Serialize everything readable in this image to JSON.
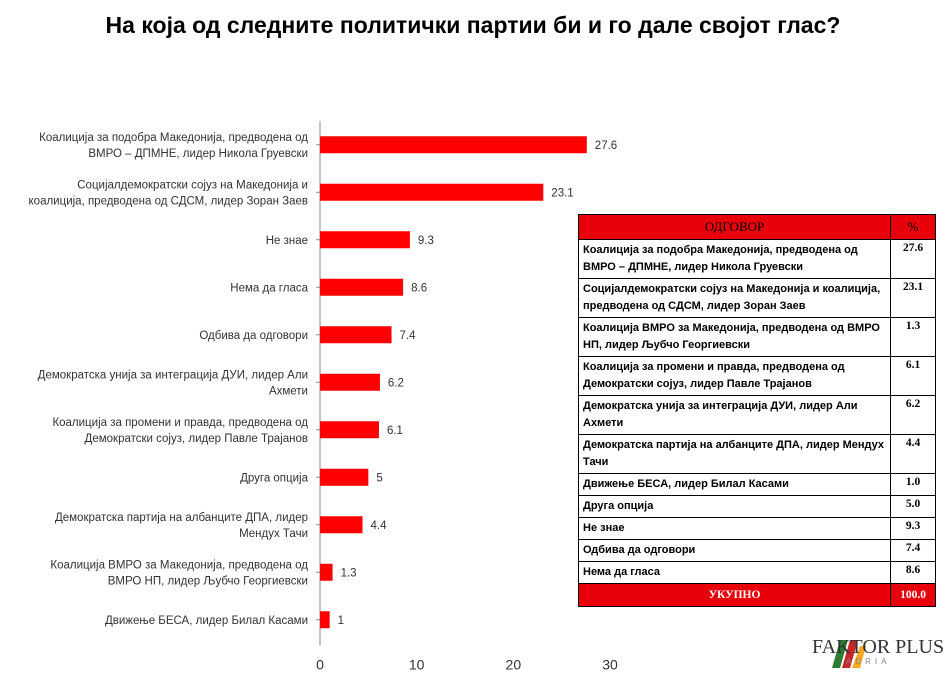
{
  "title": "На која од следните политички партии би и го дале својот глас?",
  "colors": {
    "bar": "#ff0000",
    "table_header": "#e8000b"
  },
  "chart_data": {
    "type": "bar",
    "orientation": "horizontal",
    "categories": [
      [
        "Коалиција за подобра Македонија, предводена од",
        "ВМРО – ДПМНЕ, лидер Никола Груевски"
      ],
      [
        "Социјалдемократски сојуз на Македонија и",
        "коалиција, предводена од СДСМ, лидер Зоран Заев"
      ],
      [
        "Не знае"
      ],
      [
        "Нема да гласа"
      ],
      [
        "Одбива да одговори"
      ],
      [
        "Демократска унија за интеграција ДУИ, лидер Али",
        "Ахмети"
      ],
      [
        "Коалиција за промени и правда, предводена од",
        "Демократски сојуз, лидер Павле Трајанов"
      ],
      [
        "Друга опција"
      ],
      [
        "Демократска партија на албанците ДПА, лидер",
        "Мендух Тачи"
      ],
      [
        "Коалиција ВМРО за Македонија, предводена од",
        "ВМРО НП, лидер Љубчо Георгиевски"
      ],
      [
        "Движење БЕСА, лидер Билал Касами"
      ]
    ],
    "values": [
      27.6,
      23.1,
      9.3,
      8.6,
      7.4,
      6.2,
      6.1,
      5,
      4.4,
      1.3,
      1
    ],
    "value_labels": [
      "27.6",
      "23.1",
      "9.3",
      "8.6",
      "7.4",
      "6.2",
      "6.1",
      "5",
      "4.4",
      "1.3",
      "1"
    ],
    "xlim": [
      0,
      30
    ],
    "xticks": [
      0,
      10,
      20,
      30
    ],
    "grid": false
  },
  "table": {
    "header": {
      "label": "ОДГОВОР",
      "pct": "%"
    },
    "rows": [
      {
        "label": "Коалиција за подобра Македонија, предводена од ВМРО – ДПМНЕ, лидер Никола Груевски",
        "pct": "27.6"
      },
      {
        "label": "Социјалдемократски сојуз на Македонија и коалиција, предводена од СДСМ, лидер Зоран Заев",
        "pct": "23.1"
      },
      {
        "label": "Коалиција ВМРО за Македонија, предводена од ВМРО НП, лидер Љубчо Георгиевски",
        "pct": "1.3"
      },
      {
        "label": "Коалиција за промени и правда, предводена од Демократски сојуз, лидер Павле Трајанов",
        "pct": "6.1"
      },
      {
        "label": "Демократска унија за интеграција ДУИ, лидер Али Ахмети",
        "pct": "6.2"
      },
      {
        "label": "Демократска партија на албанците ДПА, лидер Мендух Тачи",
        "pct": "4.4"
      },
      {
        "label": "Движење БЕСА, лидер Билал Касами",
        "pct": "1.0"
      },
      {
        "label": "Друга опција",
        "pct": "5.0"
      },
      {
        "label": "Не знае",
        "pct": "9.3"
      },
      {
        "label": "Одбива да одговори",
        "pct": "7.4"
      },
      {
        "label": "Нема да гласа",
        "pct": "8.6"
      }
    ],
    "footer": {
      "label": "УКУПНО",
      "pct": "100.0"
    }
  },
  "logo": {
    "name": "FAKTOR PLUS",
    "sub": "ADRIA",
    "icon": "faktor-plus-logo-icon"
  }
}
